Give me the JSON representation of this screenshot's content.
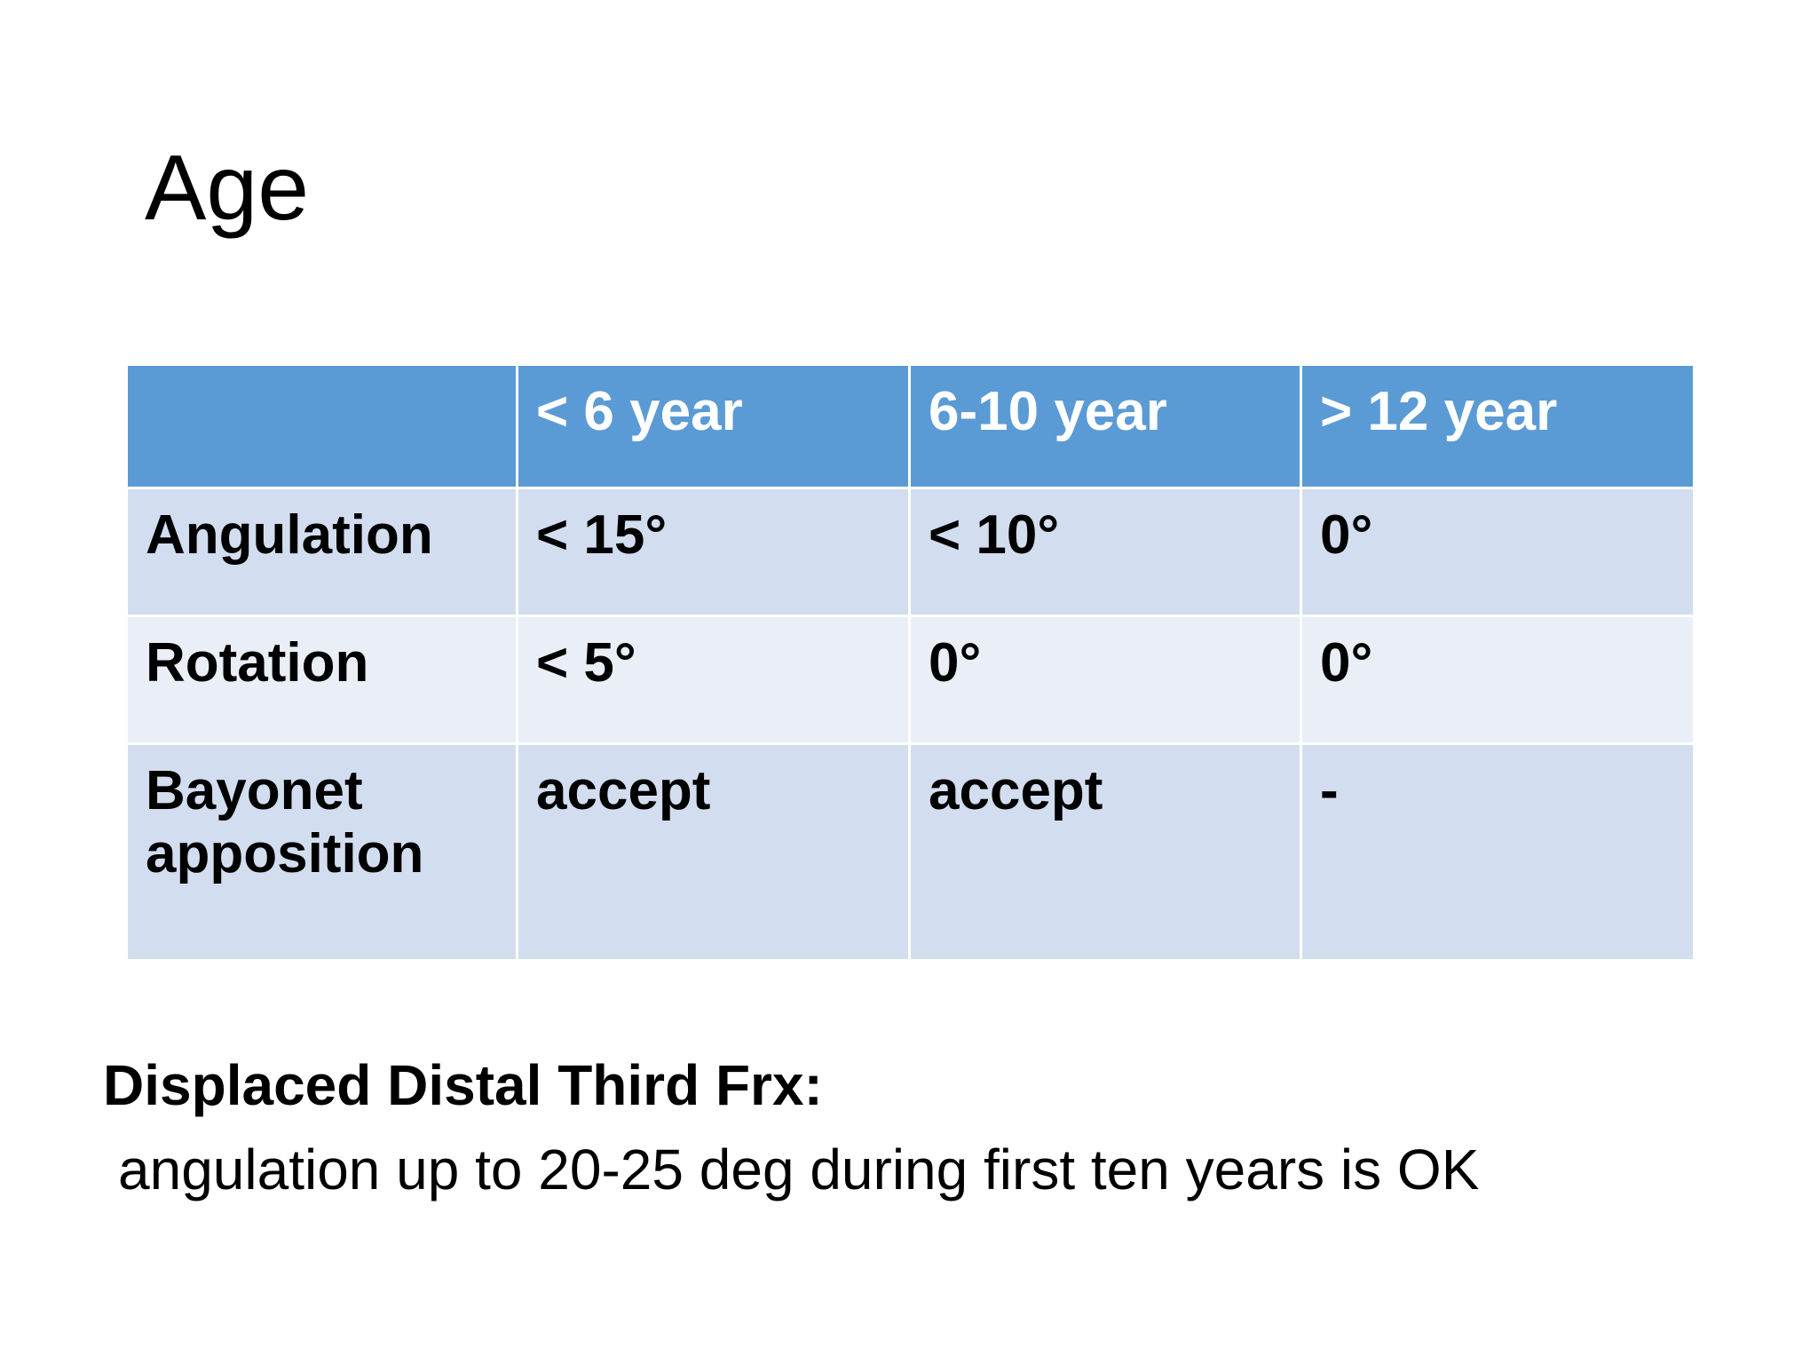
{
  "title": "Age",
  "table": {
    "header": [
      "< 6 year",
      "6-10 year",
      "> 12 year"
    ],
    "rows": [
      [
        "Angulation",
        "< 15°",
        "< 10°",
        "0°"
      ],
      [
        "Rotation",
        "< 5°",
        "0°",
        "0°"
      ],
      [
        "Bayonet apposition",
        "accept",
        "accept",
        "-"
      ]
    ]
  },
  "note": {
    "heading": "Displaced Distal Third Frx:",
    "text": "angulation up to 20-25 deg during first ten years is OK"
  }
}
